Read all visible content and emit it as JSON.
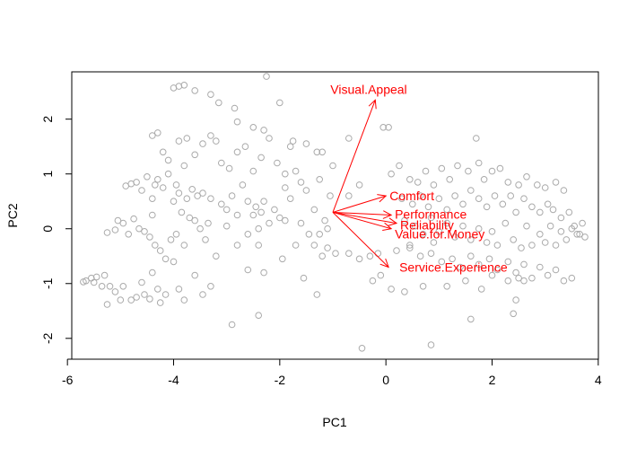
{
  "chart_data": {
    "type": "scatter",
    "subtype": "pca-biplot",
    "title": "",
    "xlabel": "PC1",
    "ylabel": "PC2",
    "xlim": [
      -6,
      4
    ],
    "ylim": [
      -2.2,
      2.7
    ],
    "xticks": [
      -6,
      -4,
      -2,
      0,
      2,
      4
    ],
    "yticks": [
      -2,
      -1,
      0,
      1,
      2
    ],
    "grid": false,
    "point_color": "#aaaaaa",
    "arrow_color": "#ff0000",
    "arrow_origin": [
      -1.0,
      0.3
    ],
    "loadings": [
      {
        "label": "Visual.Appeal",
        "x": -0.2,
        "y": 2.35
      },
      {
        "label": "Comfort",
        "x": 0.0,
        "y": 0.6
      },
      {
        "label": "Performance",
        "x": 0.1,
        "y": 0.25
      },
      {
        "label": "Reliability",
        "x": 0.2,
        "y": 0.1
      },
      {
        "label": "Value.for.Money",
        "x": 0.1,
        "y": 0.0
      },
      {
        "label": "Service.Experience",
        "x": 0.05,
        "y": -0.7
      }
    ],
    "points": [
      [
        -5.7,
        -0.97
      ],
      [
        -5.65,
        -0.95
      ],
      [
        -5.55,
        -0.9
      ],
      [
        -5.5,
        -0.98
      ],
      [
        -5.45,
        -0.88
      ],
      [
        -5.35,
        -1.05
      ],
      [
        -5.3,
        -0.85
      ],
      [
        -5.25,
        -1.38
      ],
      [
        -5.2,
        -1.05
      ],
      [
        -5.1,
        -1.15
      ],
      [
        -5.0,
        -1.3
      ],
      [
        -4.95,
        -1.05
      ],
      [
        -4.8,
        -1.3
      ],
      [
        -4.7,
        -1.25
      ],
      [
        -4.6,
        -0.98
      ],
      [
        -4.55,
        -1.2
      ],
      [
        -4.45,
        -1.28
      ],
      [
        -4.4,
        -0.8
      ],
      [
        -4.3,
        -1.1
      ],
      [
        -4.25,
        -1.35
      ],
      [
        -4.15,
        -1.2
      ],
      [
        -4.0,
        -0.6
      ],
      [
        -3.9,
        -1.1
      ],
      [
        -3.8,
        -1.3
      ],
      [
        -3.6,
        -0.85
      ],
      [
        -3.45,
        -1.2
      ],
      [
        -3.3,
        -1.05
      ],
      [
        -5.25,
        -0.07
      ],
      [
        -5.1,
        -0.02
      ],
      [
        -5.05,
        0.15
      ],
      [
        -4.95,
        0.1
      ],
      [
        -4.85,
        -0.1
      ],
      [
        -4.75,
        0.18
      ],
      [
        -4.65,
        0.0
      ],
      [
        -4.55,
        -0.05
      ],
      [
        -4.45,
        -0.15
      ],
      [
        -4.4,
        0.25
      ],
      [
        -4.35,
        -0.3
      ],
      [
        -4.25,
        -0.4
      ],
      [
        -4.15,
        -0.55
      ],
      [
        -4.05,
        -0.2
      ],
      [
        -3.95,
        -0.1
      ],
      [
        -3.85,
        0.3
      ],
      [
        -3.8,
        -0.3
      ],
      [
        -3.7,
        0.2
      ],
      [
        -3.6,
        0.15
      ],
      [
        -3.5,
        0.0
      ],
      [
        -3.4,
        -0.2
      ],
      [
        -3.35,
        0.1
      ],
      [
        -3.2,
        -0.5
      ],
      [
        -3.0,
        0.05
      ],
      [
        -2.8,
        -0.3
      ],
      [
        -2.6,
        -0.1
      ],
      [
        -2.4,
        0.0
      ],
      [
        -4.9,
        0.78
      ],
      [
        -4.8,
        0.82
      ],
      [
        -4.7,
        0.85
      ],
      [
        -4.6,
        0.7
      ],
      [
        -4.5,
        0.95
      ],
      [
        -4.4,
        0.55
      ],
      [
        -4.35,
        0.8
      ],
      [
        -4.3,
        0.9
      ],
      [
        -4.2,
        0.75
      ],
      [
        -4.1,
        1.0
      ],
      [
        -4.0,
        0.5
      ],
      [
        -3.95,
        0.8
      ],
      [
        -3.9,
        0.65
      ],
      [
        -3.8,
        1.15
      ],
      [
        -3.75,
        0.55
      ],
      [
        -3.65,
        0.72
      ],
      [
        -3.55,
        0.6
      ],
      [
        -3.45,
        0.65
      ],
      [
        -3.3,
        0.55
      ],
      [
        -3.1,
        0.45
      ],
      [
        -3.0,
        0.35
      ],
      [
        -2.9,
        0.6
      ],
      [
        -2.8,
        0.25
      ],
      [
        -2.6,
        0.5
      ],
      [
        -2.45,
        0.4
      ],
      [
        -2.35,
        0.3
      ],
      [
        -4.4,
        1.7
      ],
      [
        -4.3,
        1.75
      ],
      [
        -4.2,
        1.4
      ],
      [
        -4.1,
        1.25
      ],
      [
        -3.9,
        1.6
      ],
      [
        -3.75,
        1.65
      ],
      [
        -3.6,
        1.35
      ],
      [
        -3.45,
        1.55
      ],
      [
        -3.3,
        1.7
      ],
      [
        -3.2,
        1.6
      ],
      [
        -3.1,
        1.2
      ],
      [
        -2.95,
        1.1
      ],
      [
        -2.8,
        1.4
      ],
      [
        -2.65,
        1.5
      ],
      [
        -2.5,
        1.05
      ],
      [
        -2.35,
        1.3
      ],
      [
        -2.2,
        1.65
      ],
      [
        -2.05,
        1.2
      ],
      [
        -1.9,
        1.0
      ],
      [
        -4.0,
        2.57
      ],
      [
        -3.9,
        2.6
      ],
      [
        -3.8,
        2.62
      ],
      [
        -3.6,
        2.52
      ],
      [
        -3.3,
        2.45
      ],
      [
        -3.15,
        2.3
      ],
      [
        -2.85,
        2.2
      ],
      [
        -2.25,
        2.78
      ],
      [
        -2.0,
        2.3
      ],
      [
        -2.8,
        1.95
      ],
      [
        -2.5,
        1.85
      ],
      [
        -2.3,
        1.8
      ],
      [
        -2.7,
        0.8
      ],
      [
        -2.5,
        0.25
      ],
      [
        -2.3,
        0.5
      ],
      [
        -2.1,
        0.35
      ],
      [
        -1.9,
        0.75
      ],
      [
        -1.8,
        0.55
      ],
      [
        -1.7,
        1.05
      ],
      [
        -1.6,
        0.85
      ],
      [
        -1.5,
        0.7
      ],
      [
        -1.35,
        0.35
      ],
      [
        -1.25,
        0.9
      ],
      [
        -1.15,
        0.15
      ],
      [
        -1.1,
        0.0
      ],
      [
        -1.05,
        0.6
      ],
      [
        -1.25,
        -0.1
      ],
      [
        -1.2,
        1.4
      ],
      [
        -1.0,
        1.15
      ],
      [
        -1.9,
        0.15
      ],
      [
        -2.0,
        0.2
      ],
      [
        -2.2,
        0.1
      ],
      [
        -2.4,
        -0.3
      ],
      [
        -2.6,
        -0.75
      ],
      [
        -2.3,
        -0.8
      ],
      [
        -1.95,
        -0.55
      ],
      [
        -1.7,
        -0.3
      ],
      [
        -1.55,
        -0.9
      ],
      [
        -1.3,
        -1.2
      ],
      [
        -1.1,
        -0.35
      ],
      [
        -0.95,
        -0.45
      ],
      [
        -2.9,
        -1.75
      ],
      [
        -2.4,
        -1.58
      ],
      [
        -1.8,
        1.5
      ],
      [
        -1.75,
        1.6
      ],
      [
        -1.5,
        1.55
      ],
      [
        -1.3,
        1.4
      ],
      [
        -1.45,
        -0.1
      ],
      [
        -1.35,
        -0.3
      ],
      [
        -1.2,
        -0.5
      ],
      [
        -1.6,
        0.1
      ],
      [
        -0.7,
        -0.45
      ],
      [
        -0.5,
        -0.55
      ],
      [
        -0.3,
        -0.5
      ],
      [
        -0.15,
        -0.45
      ],
      [
        -0.45,
        -2.18
      ],
      [
        0.85,
        -2.12
      ],
      [
        -0.25,
        -0.95
      ],
      [
        -0.1,
        -0.85
      ],
      [
        -0.7,
        0.6
      ],
      [
        -0.5,
        0.8
      ],
      [
        -0.7,
        1.65
      ],
      [
        -0.05,
        1.85
      ],
      [
        0.05,
        1.85
      ],
      [
        0.1,
        1.0
      ],
      [
        0.25,
        1.15
      ],
      [
        0.45,
        0.9
      ],
      [
        0.6,
        0.85
      ],
      [
        0.75,
        1.05
      ],
      [
        0.9,
        0.8
      ],
      [
        1.05,
        1.1
      ],
      [
        1.2,
        0.9
      ],
      [
        1.35,
        1.15
      ],
      [
        1.55,
        1.05
      ],
      [
        1.7,
        1.65
      ],
      [
        1.75,
        1.2
      ],
      [
        1.85,
        0.9
      ],
      [
        2.0,
        1.05
      ],
      [
        2.15,
        1.1
      ],
      [
        2.3,
        0.85
      ],
      [
        2.5,
        0.8
      ],
      [
        2.65,
        0.95
      ],
      [
        2.85,
        0.8
      ],
      [
        3.0,
        0.75
      ],
      [
        3.2,
        0.85
      ],
      [
        3.35,
        0.7
      ],
      [
        0.3,
        0.55
      ],
      [
        0.5,
        0.45
      ],
      [
        0.65,
        0.6
      ],
      [
        0.8,
        0.4
      ],
      [
        1.0,
        0.55
      ],
      [
        1.15,
        0.35
      ],
      [
        1.3,
        0.6
      ],
      [
        1.45,
        0.45
      ],
      [
        1.6,
        0.7
      ],
      [
        1.75,
        0.55
      ],
      [
        1.9,
        0.4
      ],
      [
        2.05,
        0.6
      ],
      [
        2.2,
        0.45
      ],
      [
        2.35,
        0.6
      ],
      [
        2.45,
        0.3
      ],
      [
        2.6,
        0.55
      ],
      [
        2.75,
        0.4
      ],
      [
        2.9,
        0.3
      ],
      [
        3.05,
        0.45
      ],
      [
        3.15,
        0.35
      ],
      [
        3.3,
        0.2
      ],
      [
        3.45,
        0.3
      ],
      [
        3.55,
        0.05
      ],
      [
        3.65,
        -0.1
      ],
      [
        3.7,
        0.1
      ],
      [
        3.75,
        -0.15
      ],
      [
        0.35,
        0.15
      ],
      [
        0.55,
        0.05
      ],
      [
        0.7,
        -0.1
      ],
      [
        0.85,
        0.2
      ],
      [
        1.0,
        -0.05
      ],
      [
        1.15,
        0.1
      ],
      [
        1.3,
        -0.15
      ],
      [
        1.45,
        0.05
      ],
      [
        1.6,
        -0.2
      ],
      [
        1.75,
        0.0
      ],
      [
        1.9,
        -0.25
      ],
      [
        2.0,
        -0.05
      ],
      [
        2.1,
        -0.3
      ],
      [
        2.25,
        0.1
      ],
      [
        2.4,
        -0.2
      ],
      [
        2.55,
        -0.35
      ],
      [
        2.65,
        0.05
      ],
      [
        2.75,
        -0.3
      ],
      [
        2.9,
        -0.1
      ],
      [
        3.0,
        -0.25
      ],
      [
        3.1,
        0.05
      ],
      [
        3.2,
        -0.3
      ],
      [
        3.3,
        -0.05
      ],
      [
        3.4,
        -0.2
      ],
      [
        3.5,
        0.0
      ],
      [
        3.6,
        -0.1
      ],
      [
        0.2,
        -0.4
      ],
      [
        0.45,
        -0.35
      ],
      [
        0.65,
        -0.5
      ],
      [
        0.85,
        -0.45
      ],
      [
        1.05,
        -0.6
      ],
      [
        1.25,
        -0.55
      ],
      [
        1.4,
        -0.7
      ],
      [
        1.6,
        -0.5
      ],
      [
        1.75,
        -0.65
      ],
      [
        1.95,
        -0.55
      ],
      [
        2.1,
        -0.75
      ],
      [
        2.3,
        -0.6
      ],
      [
        2.45,
        -0.8
      ],
      [
        2.6,
        -0.65
      ],
      [
        2.75,
        -0.9
      ],
      [
        2.9,
        -0.7
      ],
      [
        3.05,
        -0.85
      ],
      [
        3.2,
        -0.75
      ],
      [
        3.35,
        -0.95
      ],
      [
        3.5,
        -0.9
      ],
      [
        2.5,
        -0.9
      ],
      [
        2.3,
        -0.95
      ],
      [
        2.6,
        -0.95
      ],
      [
        0.1,
        -1.1
      ],
      [
        0.35,
        -1.15
      ],
      [
        0.7,
        -1.05
      ],
      [
        1.15,
        -1.05
      ],
      [
        1.5,
        -0.95
      ],
      [
        2.0,
        -0.85
      ],
      [
        1.8,
        -1.1
      ],
      [
        2.45,
        -1.3
      ],
      [
        2.4,
        -1.55
      ],
      [
        1.6,
        -1.65
      ],
      [
        0.45,
        -0.3
      ],
      [
        0.9,
        -0.25
      ]
    ]
  }
}
